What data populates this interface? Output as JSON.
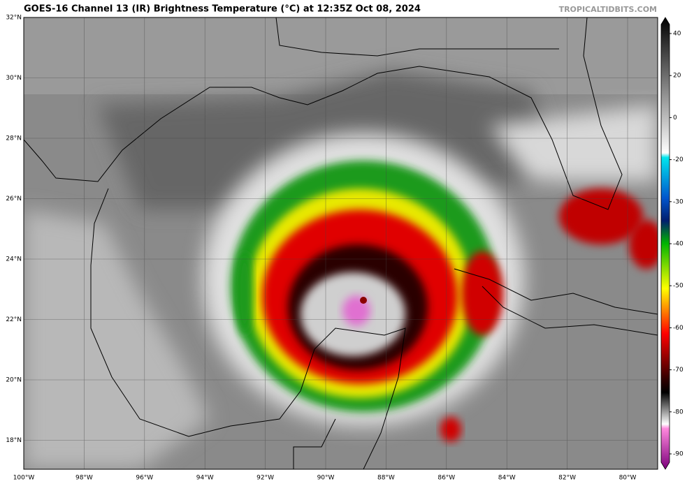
{
  "header": {
    "title": "GOES-16 Channel 13 (IR) Brightness Temperature (°C) at 12:35Z Oct 08, 2024",
    "credit": "TROPICALTIDBITS.COM"
  },
  "map": {
    "lat_labels": [
      "32°N",
      "30°N",
      "28°N",
      "26°N",
      "24°N",
      "22°N",
      "20°N",
      "18°N"
    ],
    "lon_labels": [
      "100°W",
      "98°W",
      "96°W",
      "94°W",
      "92°W",
      "90°W",
      "88°W",
      "86°W",
      "84°W",
      "82°W",
      "80°W"
    ]
  },
  "colorbar": {
    "ticks": [
      40,
      20,
      0,
      -20,
      -30,
      -40,
      -50,
      -60,
      -70,
      -80,
      -90
    ]
  }
}
